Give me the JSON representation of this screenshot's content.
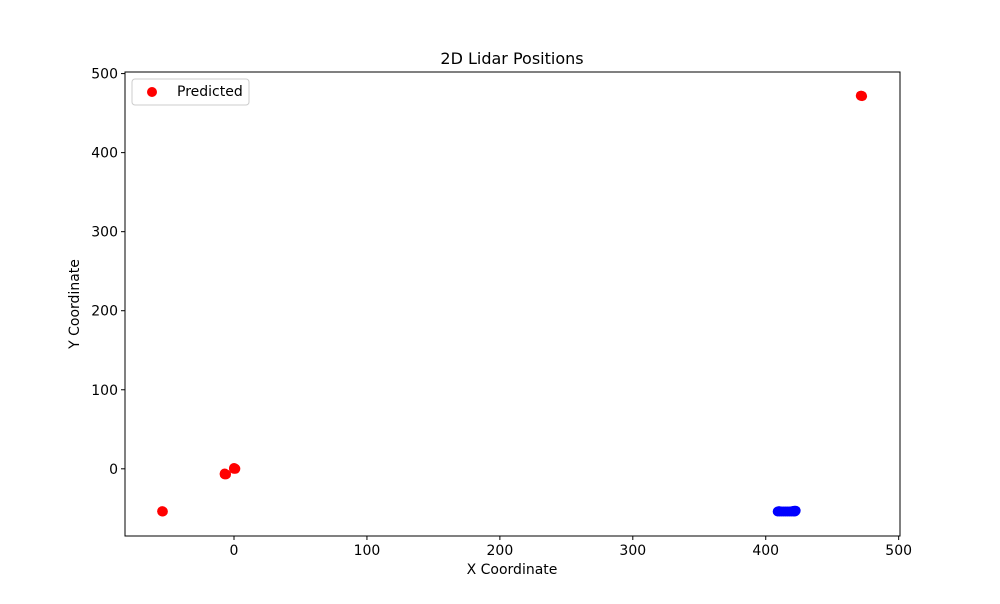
{
  "chart_data": {
    "type": "scatter",
    "title": "2D Lidar Positions",
    "xlabel": "X Coordinate",
    "ylabel": "Y Coordinate",
    "xlim": [
      -82,
      501
    ],
    "ylim": [
      -85,
      502
    ],
    "xticks": [
      0,
      100,
      200,
      300,
      400,
      500
    ],
    "yticks": [
      0,
      100,
      200,
      300,
      400,
      500
    ],
    "grid": false,
    "legend": {
      "position": "top-left"
    },
    "series": [
      {
        "name": "Predicted",
        "color": "#ff0000",
        "points": [
          [
            -54,
            -54
          ],
          [
            -53.5,
            -54
          ],
          [
            -54,
            -53.5
          ],
          [
            -7,
            -6
          ],
          [
            -6,
            -7
          ],
          [
            -7,
            -7
          ],
          [
            0,
            0
          ],
          [
            1,
            0
          ],
          [
            0,
            1
          ],
          [
            0.5,
            0.5
          ],
          [
            472,
            472
          ],
          [
            472.5,
            471.5
          ],
          [
            471.5,
            472
          ]
        ]
      },
      {
        "name": "",
        "color": "#0000ff",
        "points": [
          [
            409,
            -54
          ],
          [
            410.5,
            -54
          ],
          [
            412,
            -54
          ],
          [
            413.5,
            -54
          ],
          [
            415,
            -54
          ],
          [
            416.5,
            -54
          ],
          [
            418,
            -54
          ],
          [
            419.5,
            -54
          ],
          [
            421,
            -54
          ],
          [
            422,
            -54
          ],
          [
            422.5,
            -53
          ],
          [
            421.5,
            -53
          ],
          [
            410,
            -53.5
          ],
          [
            420,
            -53.5
          ]
        ]
      }
    ]
  }
}
